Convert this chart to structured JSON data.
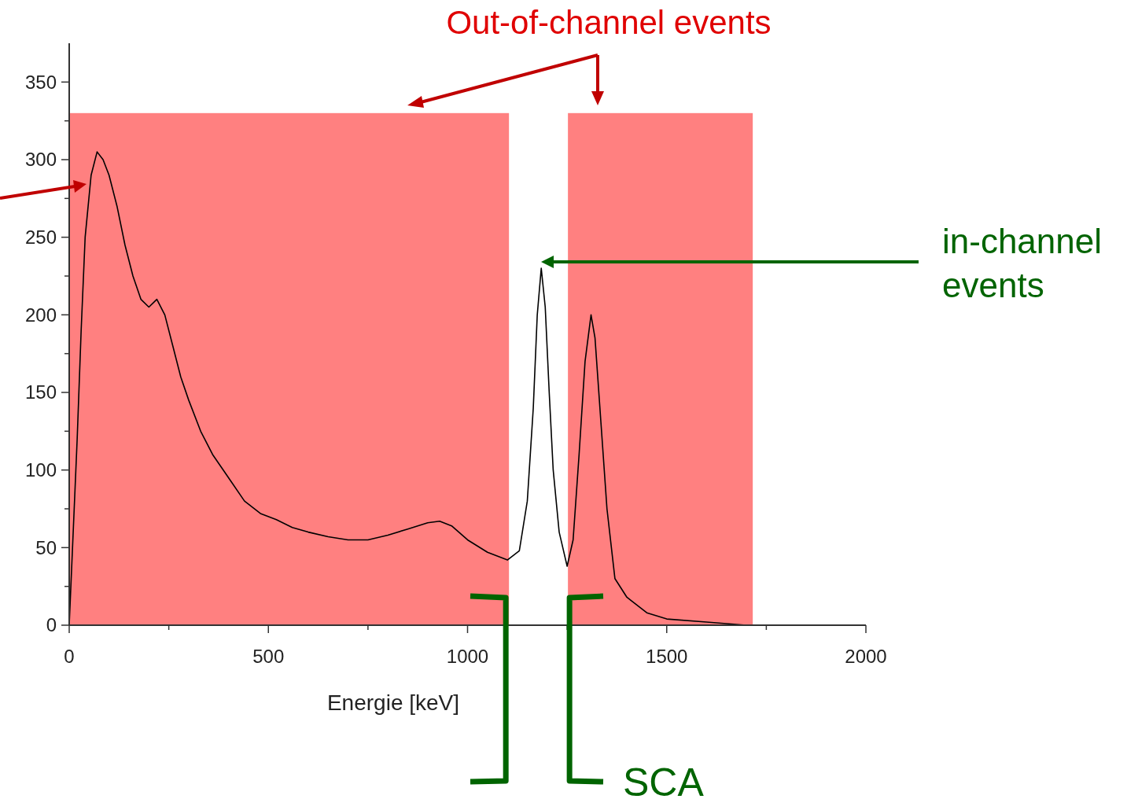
{
  "chart_data": {
    "type": "line",
    "xlabel": "Energie [keV]",
    "xlim": [
      0,
      2000
    ],
    "ylim": [
      0,
      375
    ],
    "xticks": [
      0,
      {
        "value": 250,
        "label": null
      },
      500,
      {
        "value": 750,
        "label": null
      },
      1000,
      {
        "value": 1250,
        "label": null
      },
      1500,
      {
        "value": 1750,
        "label": null
      },
      2000
    ],
    "yticks": [
      0,
      {
        "value": 25,
        "label": null
      },
      50,
      {
        "value": 75,
        "label": null
      },
      100,
      {
        "value": 125,
        "label": null
      },
      150,
      {
        "value": 175,
        "label": null
      },
      200,
      {
        "value": 225,
        "label": null
      },
      250,
      {
        "value": 275,
        "label": null
      },
      300,
      {
        "value": 325,
        "label": null
      },
      350
    ],
    "grid": false,
    "marker": "none",
    "line_style": "solid",
    "bands": [
      {
        "axis": "x",
        "from": 0,
        "to": 1104,
        "color": "#ff8080"
      },
      {
        "axis": "x",
        "from": 1252,
        "to": 1716,
        "color": "#ff8080"
      }
    ],
    "annotations": [
      "Out-of-channel events",
      "in-channel events",
      "SCA"
    ],
    "series": [
      {
        "color": "#000000",
        "x": [
          0,
          10,
          20,
          30,
          40,
          55,
          70,
          85,
          100,
          120,
          140,
          160,
          180,
          200,
          220,
          240,
          260,
          280,
          300,
          330,
          360,
          400,
          440,
          480,
          520,
          560,
          600,
          650,
          700,
          750,
          800,
          850,
          900,
          930,
          960,
          1000,
          1050,
          1100,
          1130,
          1150,
          1165,
          1175,
          1185,
          1195,
          1205,
          1215,
          1230,
          1250,
          1265,
          1280,
          1295,
          1310,
          1320,
          1335,
          1350,
          1370,
          1400,
          1450,
          1500,
          1600,
          1700
        ],
        "values": [
          0,
          60,
          120,
          190,
          250,
          290,
          305,
          300,
          290,
          270,
          245,
          225,
          210,
          205,
          210,
          200,
          180,
          160,
          145,
          125,
          110,
          95,
          80,
          72,
          68,
          63,
          60,
          57,
          55,
          55,
          58,
          62,
          66,
          67,
          64,
          55,
          47,
          42,
          48,
          80,
          140,
          200,
          230,
          205,
          150,
          100,
          60,
          38,
          55,
          110,
          170,
          200,
          185,
          130,
          75,
          30,
          18,
          8,
          4,
          2,
          0
        ]
      }
    ]
  }
}
